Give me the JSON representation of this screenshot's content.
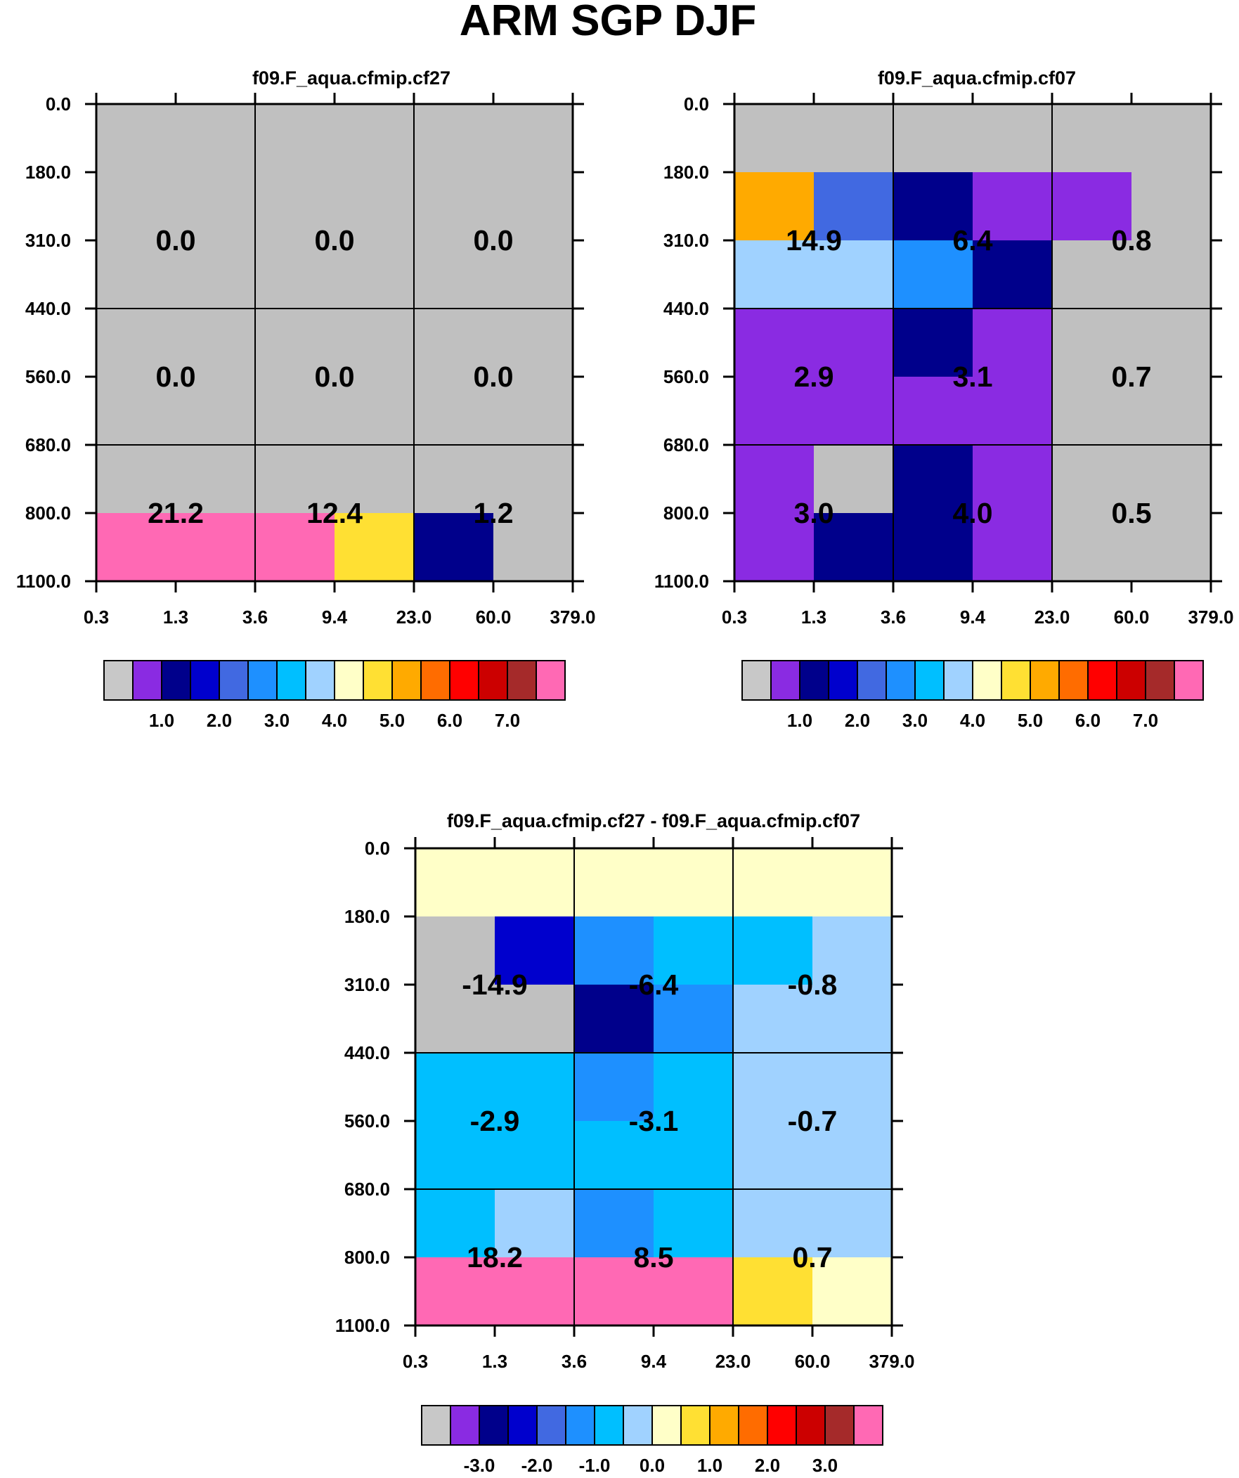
{
  "title": "ARM SGP DJF",
  "colormap": {
    "colors": [
      "#c8c8c8",
      "#8a2be2",
      "#00008b",
      "#0000cd",
      "#4169e1",
      "#1e90ff",
      "#00bfff",
      "#a0d2ff",
      "#ffffc8",
      "#ffe033",
      "#ffaa00",
      "#ff6c00",
      "#ff0000",
      "#cc0000",
      "#a52a2a",
      "#ff69b4"
    ],
    "missing_color": "#c0c0c0"
  },
  "chart_data": [
    {
      "type": "heatmap",
      "title": "f09.F_aqua.cfmip.cf27",
      "x_edges": [
        0.3,
        1.3,
        3.6,
        9.4,
        23.0,
        60.0,
        379.0
      ],
      "x_tick_labels": [
        "0.3",
        "1.3",
        "3.6",
        "9.4",
        "23.0",
        "60.0",
        "379.0"
      ],
      "y_edges": [
        0.0,
        180.0,
        310.0,
        440.0,
        560.0,
        680.0,
        800.0,
        1100.0
      ],
      "y_tick_labels": [
        "0.0",
        "180.0",
        "310.0",
        "440.0",
        "560.0",
        "680.0",
        "800.0",
        "1100.0"
      ],
      "cell_color_index": [
        [
          0,
          0,
          0,
          0,
          0,
          0
        ],
        [
          0,
          0,
          0,
          0,
          0,
          0
        ],
        [
          0,
          0,
          0,
          0,
          0,
          0
        ],
        [
          0,
          0,
          0,
          0,
          0,
          0
        ],
        [
          0,
          0,
          0,
          0,
          0,
          0
        ],
        [
          0,
          0,
          0,
          0,
          0,
          0
        ],
        [
          15,
          15,
          15,
          9,
          2,
          0
        ]
      ],
      "group_values": [
        [
          "0.0",
          "0.0",
          "0.0"
        ],
        [
          "0.0",
          "0.0",
          "0.0"
        ],
        [
          "21.2",
          "12.4",
          "1.2"
        ]
      ],
      "colorbar_labels": [
        "1.0",
        "2.0",
        "3.0",
        "4.0",
        "5.0",
        "6.0",
        "7.0"
      ]
    },
    {
      "type": "heatmap",
      "title": "f09.F_aqua.cfmip.cf07",
      "x_edges": [
        0.3,
        1.3,
        3.6,
        9.4,
        23.0,
        60.0,
        379.0
      ],
      "x_tick_labels": [
        "0.3",
        "1.3",
        "3.6",
        "9.4",
        "23.0",
        "60.0",
        "379.0"
      ],
      "y_edges": [
        0.0,
        180.0,
        310.0,
        440.0,
        560.0,
        680.0,
        800.0,
        1100.0
      ],
      "y_tick_labels": [
        "0.0",
        "180.0",
        "310.0",
        "440.0",
        "560.0",
        "680.0",
        "800.0",
        "1100.0"
      ],
      "cell_color_index": [
        [
          0,
          0,
          0,
          0,
          0,
          0
        ],
        [
          10,
          4,
          2,
          1,
          1,
          0
        ],
        [
          7,
          7,
          5,
          2,
          0,
          0
        ],
        [
          1,
          1,
          2,
          1,
          0,
          0
        ],
        [
          1,
          1,
          1,
          1,
          0,
          0
        ],
        [
          1,
          0,
          2,
          1,
          0,
          0
        ],
        [
          1,
          2,
          2,
          1,
          0,
          0
        ]
      ],
      "group_values": [
        [
          "14.9",
          "6.4",
          "0.8"
        ],
        [
          "2.9",
          "3.1",
          "0.7"
        ],
        [
          "3.0",
          "4.0",
          "0.5"
        ]
      ],
      "colorbar_labels": [
        "1.0",
        "2.0",
        "3.0",
        "4.0",
        "5.0",
        "6.0",
        "7.0"
      ]
    },
    {
      "type": "heatmap",
      "title": "f09.F_aqua.cfmip.cf27 - f09.F_aqua.cfmip.cf07",
      "x_edges": [
        0.3,
        1.3,
        3.6,
        9.4,
        23.0,
        60.0,
        379.0
      ],
      "x_tick_labels": [
        "0.3",
        "1.3",
        "3.6",
        "9.4",
        "23.0",
        "60.0",
        "379.0"
      ],
      "y_edges": [
        0.0,
        180.0,
        310.0,
        440.0,
        560.0,
        680.0,
        800.0,
        1100.0
      ],
      "y_tick_labels": [
        "0.0",
        "180.0",
        "310.0",
        "440.0",
        "560.0",
        "680.0",
        "800.0",
        "1100.0"
      ],
      "cell_color_index": [
        [
          8,
          8,
          8,
          8,
          8,
          8
        ],
        [
          0,
          3,
          5,
          6,
          6,
          7
        ],
        [
          0,
          0,
          2,
          5,
          7,
          7
        ],
        [
          6,
          6,
          5,
          6,
          7,
          7
        ],
        [
          6,
          6,
          6,
          6,
          7,
          7
        ],
        [
          6,
          7,
          5,
          6,
          7,
          7
        ],
        [
          15,
          15,
          15,
          15,
          9,
          8
        ]
      ],
      "group_values": [
        [
          "-14.9",
          "-6.4",
          "-0.8"
        ],
        [
          "-2.9",
          "-3.1",
          "-0.7"
        ],
        [
          "18.2",
          "8.5",
          "0.7"
        ]
      ],
      "colorbar_labels": [
        "-3.0",
        "-2.0",
        "-1.0",
        "0.0",
        "1.0",
        "2.0",
        "3.0"
      ]
    }
  ]
}
